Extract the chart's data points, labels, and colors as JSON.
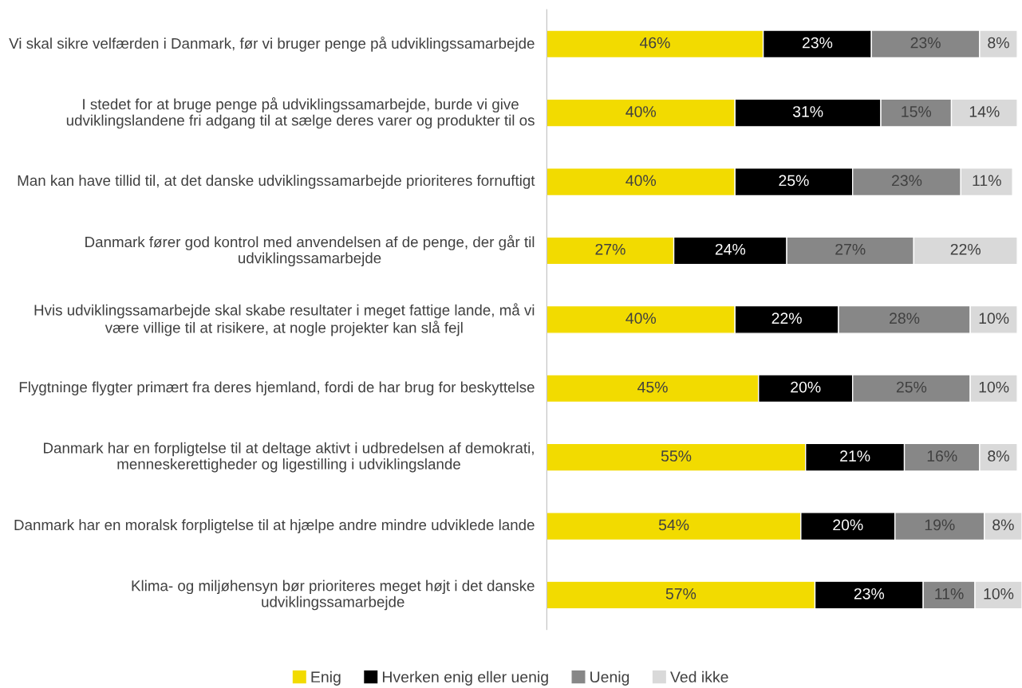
{
  "chart_data": {
    "type": "bar",
    "orientation": "horizontal",
    "stacked": true,
    "legend": "bottom",
    "categories": [
      "Vi skal sikre velfærden i Danmark, før vi bruger penge på udviklingssamarbejde",
      "I stedet for at bruge penge på udviklingssamarbejde, burde vi give udviklingslandene fri adgang til at sælge deres varer og produkter til os",
      "Man kan have tillid til, at det danske udviklingssamarbejde prioriteres fornuftigt",
      "Danmark fører god kontrol med anvendelsen af de penge, der går til udviklingssamarbejde",
      "Hvis udviklingssamarbejde skal skabe resultater i meget fattige lande, må vi være villige til at risikere, at nogle projekter kan slå fejl",
      "Flygtninge flygter primært fra deres hjemland, fordi de har brug for beskyttelse",
      "Danmark har en forpligtelse til at deltage aktivt i udbredelsen af demokrati, menneskerettigheder og ligestilling i udviklingslande",
      "Danmark har en moralsk forpligtelse til at hjælpe andre mindre udviklede lande",
      "Klima- og miljøhensyn bør prioriteres meget højt i det danske udviklingssamarbejde"
    ],
    "series": [
      {
        "name": "Enig",
        "color": "#f2db00",
        "values": [
          46,
          40,
          40,
          27,
          40,
          45,
          55,
          54,
          57
        ],
        "value_labels": [
          "46%",
          "40%",
          "40%",
          "27%",
          "40%",
          "45%",
          "55%",
          "54%",
          "57%"
        ]
      },
      {
        "name": "Hverken enig eller uenig",
        "color": "#000000",
        "values": [
          23,
          31,
          25,
          24,
          22,
          20,
          21,
          20,
          23
        ],
        "value_labels": [
          "23%",
          "31%",
          "25%",
          "24%",
          "22%",
          "20%",
          "21%",
          "20%",
          "23%"
        ]
      },
      {
        "name": "Uenig",
        "color": "#878787",
        "values": [
          23,
          15,
          23,
          27,
          28,
          25,
          16,
          19,
          11
        ],
        "value_labels": [
          "23%",
          "15%",
          "23%",
          "27%",
          "28%",
          "25%",
          "16%",
          "19%",
          "11%"
        ]
      },
      {
        "name": "Ved ikke",
        "color": "#d9d9d9",
        "values": [
          8,
          14,
          11,
          22,
          10,
          10,
          8,
          8,
          10
        ],
        "value_labels": [
          "8%",
          "14%",
          "11%",
          "22%",
          "10%",
          "10%",
          "8%",
          "8%",
          "10%"
        ]
      }
    ]
  }
}
